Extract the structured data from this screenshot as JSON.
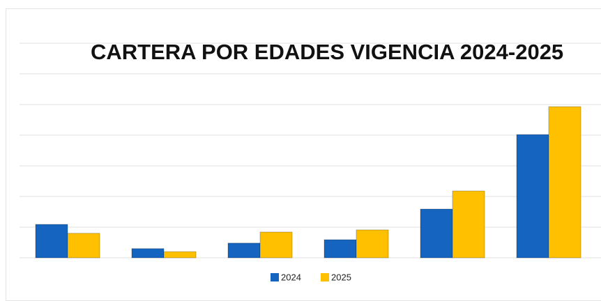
{
  "chart_data": {
    "type": "bar",
    "title": "CARTERA POR EDADES VIGENCIA 2024-2025",
    "categories": [
      null,
      null,
      null,
      null,
      null,
      null
    ],
    "series": [
      {
        "name": "2024",
        "color": "#1565c0",
        "values": [
          1.09,
          0.3,
          0.48,
          0.59,
          1.59,
          4.02
        ]
      },
      {
        "name": "2025",
        "color": "#ffc000",
        "values": [
          0.8,
          0.2,
          0.84,
          0.91,
          2.18,
          4.93
        ]
      }
    ],
    "ylim": [
      0,
      7
    ],
    "yticks": [
      0,
      1,
      2,
      3,
      4,
      5,
      6,
      7
    ],
    "grid": true,
    "legend": "bottom"
  }
}
